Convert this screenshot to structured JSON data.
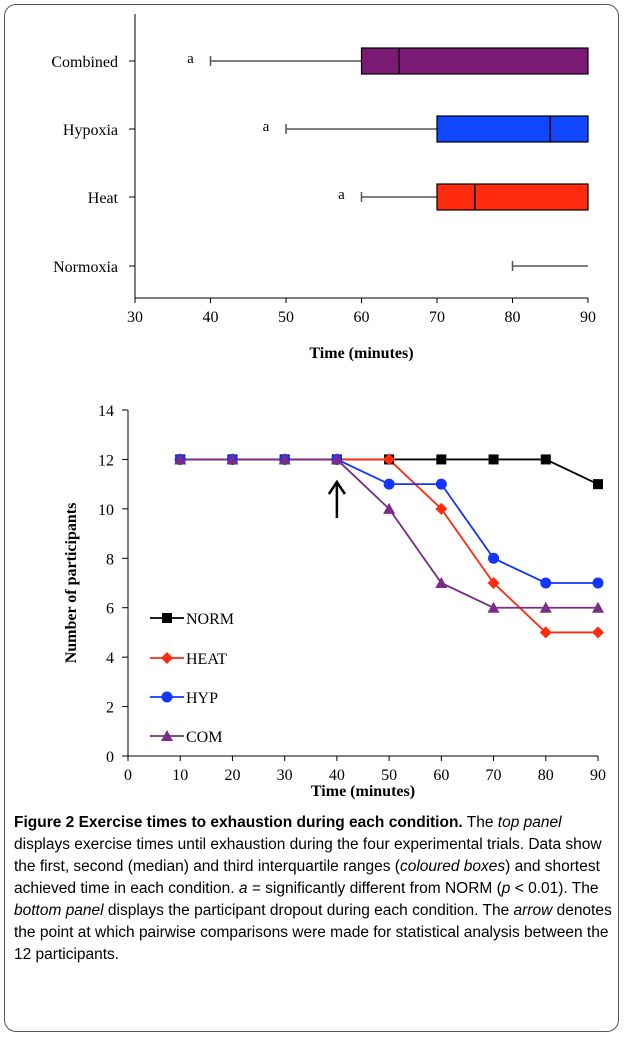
{
  "chart_data": [
    {
      "type": "boxplot",
      "xlabel": "Time (minutes)",
      "xlim": [
        30,
        90
      ],
      "xticks": [
        30,
        40,
        50,
        60,
        70,
        80,
        90
      ],
      "categories": [
        "Combined",
        "Hypoxia",
        "Heat",
        "Normoxia"
      ],
      "boxes": [
        {
          "label": "Combined",
          "min": 40,
          "q1": 60,
          "median": 65,
          "q3": 90,
          "color": "#7b1a74",
          "annotation": "a"
        },
        {
          "label": "Hypoxia",
          "min": 50,
          "q1": 70,
          "median": 85,
          "q3": 90,
          "color": "#0f48ff",
          "annotation": "a"
        },
        {
          "label": "Heat",
          "min": 60,
          "q1": 70,
          "median": 75,
          "q3": 90,
          "color": "#ff2b0e",
          "annotation": "a"
        },
        {
          "label": "Normoxia",
          "min": 80,
          "q1": 90,
          "median": 90,
          "q3": 90,
          "color": "#000000",
          "annotation": ""
        }
      ]
    },
    {
      "type": "line",
      "xlabel": "Time (minutes)",
      "ylabel": "Number of participants",
      "xlim": [
        0,
        90
      ],
      "ylim": [
        0,
        14
      ],
      "xticks": [
        0,
        10,
        20,
        30,
        40,
        50,
        60,
        70,
        80,
        90
      ],
      "yticks": [
        0,
        2,
        4,
        6,
        8,
        10,
        12,
        14
      ],
      "x": [
        10,
        20,
        30,
        40,
        50,
        60,
        70,
        80,
        90
      ],
      "legend_position": "lower-left",
      "series": [
        {
          "name": "NORM",
          "color": "#000000",
          "marker": "square",
          "values": [
            12,
            12,
            12,
            12,
            12,
            12,
            12,
            12,
            11
          ]
        },
        {
          "name": "HEAT",
          "color": "#ff2b0e",
          "marker": "diamond",
          "values": [
            12,
            12,
            12,
            12,
            12,
            10,
            7,
            5,
            5
          ]
        },
        {
          "name": "HYP",
          "color": "#1236ff",
          "marker": "circle",
          "values": [
            12,
            12,
            12,
            12,
            11,
            11,
            8,
            7,
            7
          ]
        },
        {
          "name": "COM",
          "color": "#7b2c86",
          "marker": "triangle",
          "values": [
            12,
            12,
            12,
            12,
            10,
            7,
            6,
            6,
            6
          ]
        }
      ],
      "annotation": {
        "type": "arrow",
        "x": 40
      }
    }
  ],
  "caption": {
    "title": "Figure 2 Exercise times to exhaustion during each condition.",
    "parts": [
      {
        "text": "The ",
        "italic": false
      },
      {
        "text": "top panel",
        "italic": true
      },
      {
        "text": " displays exercise times until exhaustion during the four experimental trials. Data show the first, second (median) and third interquartile ranges (",
        "italic": false
      },
      {
        "text": "coloured boxes",
        "italic": true
      },
      {
        "text": ") and shortest achieved time in each condition. ",
        "italic": false
      },
      {
        "text": "a",
        "italic": true
      },
      {
        "text": " = significantly different from NORM (",
        "italic": false
      },
      {
        "text": "p",
        "italic": true
      },
      {
        "text": " < 0.01). The ",
        "italic": false
      },
      {
        "text": "bottom panel",
        "italic": true
      },
      {
        "text": " displays the participant dropout during each condition. The ",
        "italic": false
      },
      {
        "text": "arrow",
        "italic": true
      },
      {
        "text": " denotes the point at which pairwise comparisons were made for statistical analysis between the 12 participants.",
        "italic": false
      }
    ]
  }
}
